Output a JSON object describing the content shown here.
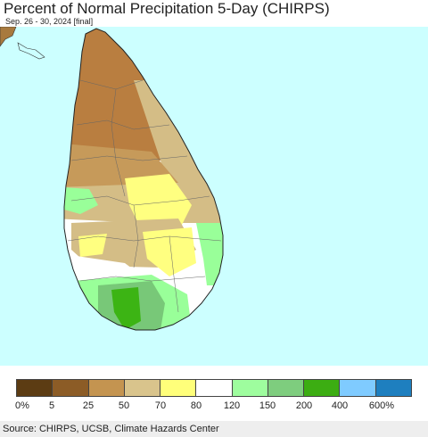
{
  "header": {
    "title": "Percent of Normal Precipitation 5-Day (CHIRPS)",
    "subtitle": "Sep. 26 - 30, 2024 [final]"
  },
  "map": {
    "ocean_color": "#ccffff",
    "land_outside_color": "#a87a3e",
    "regions": [
      {
        "name": "north-dry-zone",
        "category": "5-25",
        "color": "#b97e40"
      },
      {
        "name": "north-central-zone",
        "category": "25-50",
        "color": "#c69a5a"
      },
      {
        "name": "east-central-zone",
        "category": "50-70",
        "color": "#d4bd86"
      },
      {
        "name": "central-yellow-zone",
        "category": "70-80",
        "color": "#ffff80"
      },
      {
        "name": "southwest-white-zone",
        "category": "80-120",
        "color": "#ffffff"
      },
      {
        "name": "southern-green-zone",
        "category": "120-150",
        "color": "#99ff99"
      },
      {
        "name": "south-mid-green-zone",
        "category": "150-200",
        "color": "#78c878"
      },
      {
        "name": "south-dark-green-core",
        "category": "200-400",
        "color": "#3cb414"
      }
    ]
  },
  "legend": {
    "colors": [
      "#5c3c13",
      "#8c5c26",
      "#c49450",
      "#d9c48c",
      "#ffff7a",
      "#ffffff",
      "#9efd9e",
      "#7ecd7e",
      "#3cad12",
      "#7fcbff",
      "#1e7fbf"
    ],
    "tick_labels": [
      "0%",
      "5",
      "25",
      "50",
      "70",
      "80",
      "120",
      "150",
      "200",
      "400",
      "600%"
    ]
  },
  "footer": {
    "source": "Source: CHIRPS, UCSB, Climate Hazards Center"
  }
}
